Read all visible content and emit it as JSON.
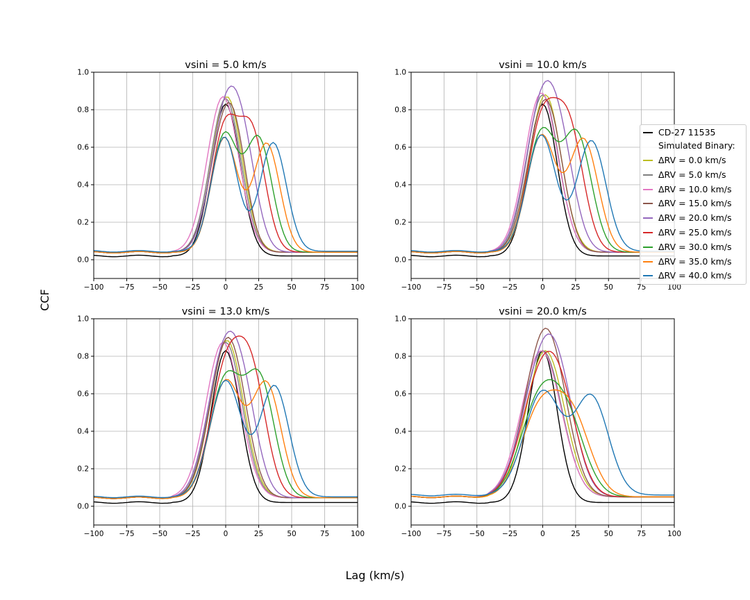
{
  "figure": {
    "ylabel": "CCF",
    "xlabel": "Lag (km/s)"
  },
  "legend": {
    "observed": {
      "label": "CD-27 11535",
      "color": "#000000"
    },
    "header": "Simulated Binary:",
    "entries": [
      {
        "label": "ΔRV = 0.0 km/s",
        "color": "#bcbd22"
      },
      {
        "label": "ΔRV = 5.0 km/s",
        "color": "#7f7f7f"
      },
      {
        "label": "ΔRV = 10.0 km/s",
        "color": "#e377c2"
      },
      {
        "label": "ΔRV = 15.0 km/s",
        "color": "#8c564b"
      },
      {
        "label": "ΔRV = 20.0 km/s",
        "color": "#9467bd"
      },
      {
        "label": "ΔRV = 25.0 km/s",
        "color": "#d62728"
      },
      {
        "label": "ΔRV = 30.0 km/s",
        "color": "#2ca02c"
      },
      {
        "label": "ΔRV = 35.0 km/s",
        "color": "#ff7f0e"
      },
      {
        "label": "ΔRV = 40.0 km/s",
        "color": "#1f77b4"
      }
    ]
  },
  "chart_data": [
    {
      "type": "line",
      "title": "vsini = 5.0 km/s",
      "xlim": [
        -100,
        100
      ],
      "ylim": [
        -0.1,
        1.0
      ],
      "xticks": [
        "−100",
        "−75",
        "−50",
        "−25",
        "0",
        "25",
        "50",
        "75",
        "100"
      ],
      "yticks": [
        "0.0",
        "0.2",
        "0.4",
        "0.6",
        "0.8",
        "1.0"
      ],
      "grid": true,
      "series": [
        {
          "name": "CD-27 11535",
          "peaks": [
            [
              0,
              0.81,
              11
            ]
          ],
          "baseline": 0.02
        },
        {
          "name": "ΔRV = 0.0 km/s",
          "peaks": [
            [
              1,
              0.83,
              11.5
            ]
          ],
          "baseline": 0.04
        },
        {
          "name": "ΔRV = 5.0 km/s",
          "peaks": [
            [
              0,
              0.82,
              11.5
            ]
          ],
          "baseline": 0.04
        },
        {
          "name": "ΔRV = 10.0 km/s",
          "peaks": [
            [
              -2,
              0.83,
              12
            ]
          ],
          "baseline": 0.04
        },
        {
          "name": "ΔRV = 15.0 km/s",
          "peaks": [
            [
              -2,
              0.6,
              11
            ],
            [
              9,
              0.32,
              9
            ]
          ],
          "baseline": 0.04
        },
        {
          "name": "ΔRV = 20.0 km/s",
          "peaks": [
            [
              -1,
              0.68,
              11
            ],
            [
              14,
              0.45,
              10
            ]
          ],
          "baseline": 0.04
        },
        {
          "name": "ΔRV = 25.0 km/s",
          "peaks": [
            [
              -1,
              0.64,
              10
            ],
            [
              20,
              0.62,
              10
            ]
          ],
          "baseline": 0.04
        },
        {
          "name": "ΔRV = 30.0 km/s",
          "peaks": [
            [
              -1,
              0.62,
              10
            ],
            [
              25,
              0.6,
              10
            ]
          ],
          "baseline": 0.04
        },
        {
          "name": "ΔRV = 35.0 km/s",
          "peaks": [
            [
              -1,
              0.61,
              10
            ],
            [
              31,
              0.58,
              10
            ]
          ],
          "baseline": 0.04
        },
        {
          "name": "ΔRV = 40.0 km/s",
          "peaks": [
            [
              -1,
              0.61,
              10
            ],
            [
              36,
              0.58,
              10
            ]
          ],
          "baseline": 0.045
        }
      ]
    },
    {
      "type": "line",
      "title": "vsini = 10.0 km/s",
      "xlim": [
        -100,
        100
      ],
      "ylim": [
        -0.1,
        1.0
      ],
      "xticks": [
        "−100",
        "−75",
        "−50",
        "−25",
        "0",
        "25",
        "50",
        "75",
        "100"
      ],
      "yticks": [
        "0.0",
        "0.2",
        "0.4",
        "0.6",
        "0.8",
        "1.0"
      ],
      "grid": true,
      "series": [
        {
          "name": "CD-27 11535",
          "peaks": [
            [
              0,
              0.81,
              11
            ]
          ],
          "baseline": 0.02
        },
        {
          "name": "ΔRV = 0.0 km/s",
          "peaks": [
            [
              2,
              0.84,
              12
            ]
          ],
          "baseline": 0.04
        },
        {
          "name": "ΔRV = 5.0 km/s",
          "peaks": [
            [
              0,
              0.84,
              12
            ]
          ],
          "baseline": 0.04
        },
        {
          "name": "ΔRV = 10.0 km/s",
          "peaks": [
            [
              -1,
              0.85,
              12.5
            ]
          ],
          "baseline": 0.04
        },
        {
          "name": "ΔRV = 15.0 km/s",
          "peaks": [
            [
              -2,
              0.6,
              11.5
            ],
            [
              9,
              0.32,
              10
            ]
          ],
          "baseline": 0.04
        },
        {
          "name": "ΔRV = 20.0 km/s",
          "peaks": [
            [
              -2,
              0.7,
              12
            ],
            [
              14,
              0.45,
              11
            ]
          ],
          "baseline": 0.04
        },
        {
          "name": "ΔRV = 25.0 km/s",
          "peaks": [
            [
              -1,
              0.66,
              11
            ],
            [
              20,
              0.64,
              11
            ]
          ],
          "baseline": 0.04
        },
        {
          "name": "ΔRV = 30.0 km/s",
          "peaks": [
            [
              -1,
              0.63,
              11
            ],
            [
              26,
              0.62,
              11
            ]
          ],
          "baseline": 0.04
        },
        {
          "name": "ΔRV = 35.0 km/s",
          "peaks": [
            [
              -1,
              0.62,
              11
            ],
            [
              31,
              0.6,
              11
            ]
          ],
          "baseline": 0.04
        },
        {
          "name": "ΔRV = 40.0 km/s",
          "peaks": [
            [
              -1,
              0.62,
              11
            ],
            [
              37,
              0.59,
              11
            ]
          ],
          "baseline": 0.045
        }
      ]
    },
    {
      "type": "line",
      "title": "vsini = 13.0 km/s",
      "xlim": [
        -100,
        100
      ],
      "ylim": [
        -0.1,
        1.0
      ],
      "xticks": [
        "−100",
        "−75",
        "−50",
        "−25",
        "0",
        "25",
        "50",
        "75",
        "100"
      ],
      "yticks": [
        "0.0",
        "0.2",
        "0.4",
        "0.6",
        "0.8",
        "1.0"
      ],
      "grid": true,
      "series": [
        {
          "name": "CD-27 11535",
          "peaks": [
            [
              0,
              0.81,
              11
            ]
          ],
          "baseline": 0.02
        },
        {
          "name": "ΔRV = 0.0 km/s",
          "peaks": [
            [
              1,
              0.84,
              12.5
            ]
          ],
          "baseline": 0.045
        },
        {
          "name": "ΔRV = 5.0 km/s",
          "peaks": [
            [
              0,
              0.83,
              12.5
            ]
          ],
          "baseline": 0.045
        },
        {
          "name": "ΔRV = 10.0 km/s",
          "peaks": [
            [
              -2,
              0.83,
              13
            ]
          ],
          "baseline": 0.045
        },
        {
          "name": "ΔRV = 15.0 km/s",
          "peaks": [
            [
              -2,
              0.62,
              12
            ],
            [
              9,
              0.33,
              11
            ]
          ],
          "baseline": 0.045
        },
        {
          "name": "ΔRV = 20.0 km/s",
          "peaks": [
            [
              -2,
              0.7,
              12.5
            ],
            [
              14,
              0.4,
              11
            ]
          ],
          "baseline": 0.045
        },
        {
          "name": "ΔRV = 25.0 km/s",
          "peaks": [
            [
              0,
              0.66,
              12
            ],
            [
              20,
              0.6,
              11
            ]
          ],
          "baseline": 0.045
        },
        {
          "name": "ΔRV = 30.0 km/s",
          "peaks": [
            [
              0,
              0.63,
              12
            ],
            [
              26,
              0.61,
              11
            ]
          ],
          "baseline": 0.045
        },
        {
          "name": "ΔRV = 35.0 km/s",
          "peaks": [
            [
              0,
              0.62,
              12
            ],
            [
              31,
              0.6,
              11
            ]
          ],
          "baseline": 0.045
        },
        {
          "name": "ΔRV = 40.0 km/s",
          "peaks": [
            [
              0,
              0.62,
              12
            ],
            [
              37,
              0.59,
              11
            ]
          ],
          "baseline": 0.05
        }
      ]
    },
    {
      "type": "line",
      "title": "vsini = 20.0 km/s",
      "xlim": [
        -100,
        100
      ],
      "ylim": [
        -0.1,
        1.0
      ],
      "xticks": [
        "−100",
        "−75",
        "−50",
        "−25",
        "0",
        "25",
        "50",
        "75",
        "100"
      ],
      "yticks": [
        "0.0",
        "0.2",
        "0.4",
        "0.6",
        "0.8",
        "1.0"
      ],
      "grid": true,
      "series": [
        {
          "name": "CD-27 11535",
          "peaks": [
            [
              0,
              0.81,
              11
            ]
          ],
          "baseline": 0.02
        },
        {
          "name": "ΔRV = 0.0 km/s",
          "peaks": [
            [
              2,
              0.78,
              14.5
            ]
          ],
          "baseline": 0.05
        },
        {
          "name": "ΔRV = 5.0 km/s",
          "peaks": [
            [
              0,
              0.78,
              14.5
            ]
          ],
          "baseline": 0.05
        },
        {
          "name": "ΔRV = 10.0 km/s",
          "peaks": [
            [
              -1,
              0.78,
              15
            ]
          ],
          "baseline": 0.05
        },
        {
          "name": "ΔRV = 15.0 km/s",
          "peaks": [
            [
              -2,
              0.62,
              14.5
            ],
            [
              9,
              0.35,
              13
            ]
          ],
          "baseline": 0.05
        },
        {
          "name": "ΔRV = 20.0 km/s",
          "peaks": [
            [
              -2,
              0.6,
              15
            ],
            [
              13,
              0.4,
              13
            ]
          ],
          "baseline": 0.05
        },
        {
          "name": "ΔRV = 25.0 km/s",
          "peaks": [
            [
              -4,
              0.52,
              14
            ],
            [
              14,
              0.45,
              13
            ]
          ],
          "baseline": 0.05
        },
        {
          "name": "ΔRV = 30.0 km/s",
          "peaks": [
            [
              -4,
              0.45,
              14
            ],
            [
              18,
              0.4,
              14
            ]
          ],
          "baseline": 0.05
        },
        {
          "name": "ΔRV = 35.0 km/s",
          "peaks": [
            [
              -3,
              0.43,
              14
            ],
            [
              22,
              0.42,
              14
            ]
          ],
          "baseline": 0.05
        },
        {
          "name": "ΔRV = 40.0 km/s",
          "peaks": [
            [
              0,
              0.55,
              14
            ],
            [
              37,
              0.52,
              13
            ]
          ],
          "baseline": 0.06
        }
      ]
    }
  ]
}
